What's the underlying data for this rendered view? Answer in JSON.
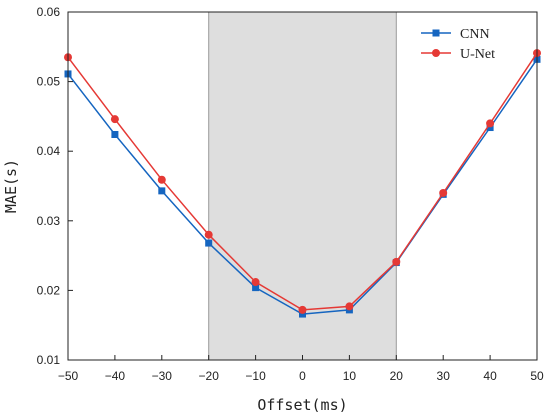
{
  "chart_data": {
    "type": "line",
    "xlabel": "Offset(ms)",
    "ylabel": "MAE(s)",
    "xlim": [
      -50,
      50
    ],
    "ylim": [
      0.01,
      0.06
    ],
    "xticks": [
      "-50",
      "-40",
      "-30",
      "-20",
      "-10",
      "0",
      "10",
      "20",
      "30",
      "40",
      "50"
    ],
    "yticks": [
      "0.01",
      "0.02",
      "0.03",
      "0.04",
      "0.05",
      "0.06"
    ],
    "x": [
      -50,
      -40,
      -30,
      -20,
      -10,
      0,
      10,
      20,
      30,
      40,
      50
    ],
    "shaded_region": [
      -20,
      20
    ],
    "shaded_color": "#dedede",
    "grid": false,
    "legend_position": "top-right",
    "series": [
      {
        "name": "CNN",
        "color": "#1565c0",
        "marker": "square",
        "values": [
          0.0511,
          0.0424,
          0.0343,
          0.0268,
          0.0204,
          0.0166,
          0.0172,
          0.024,
          0.0338,
          0.0434,
          0.0532
        ]
      },
      {
        "name": "U-Net",
        "color": "#e53935",
        "marker": "circle",
        "values": [
          0.0535,
          0.0446,
          0.0359,
          0.028,
          0.0212,
          0.0172,
          0.0177,
          0.0241,
          0.034,
          0.044,
          0.0541
        ]
      }
    ]
  }
}
